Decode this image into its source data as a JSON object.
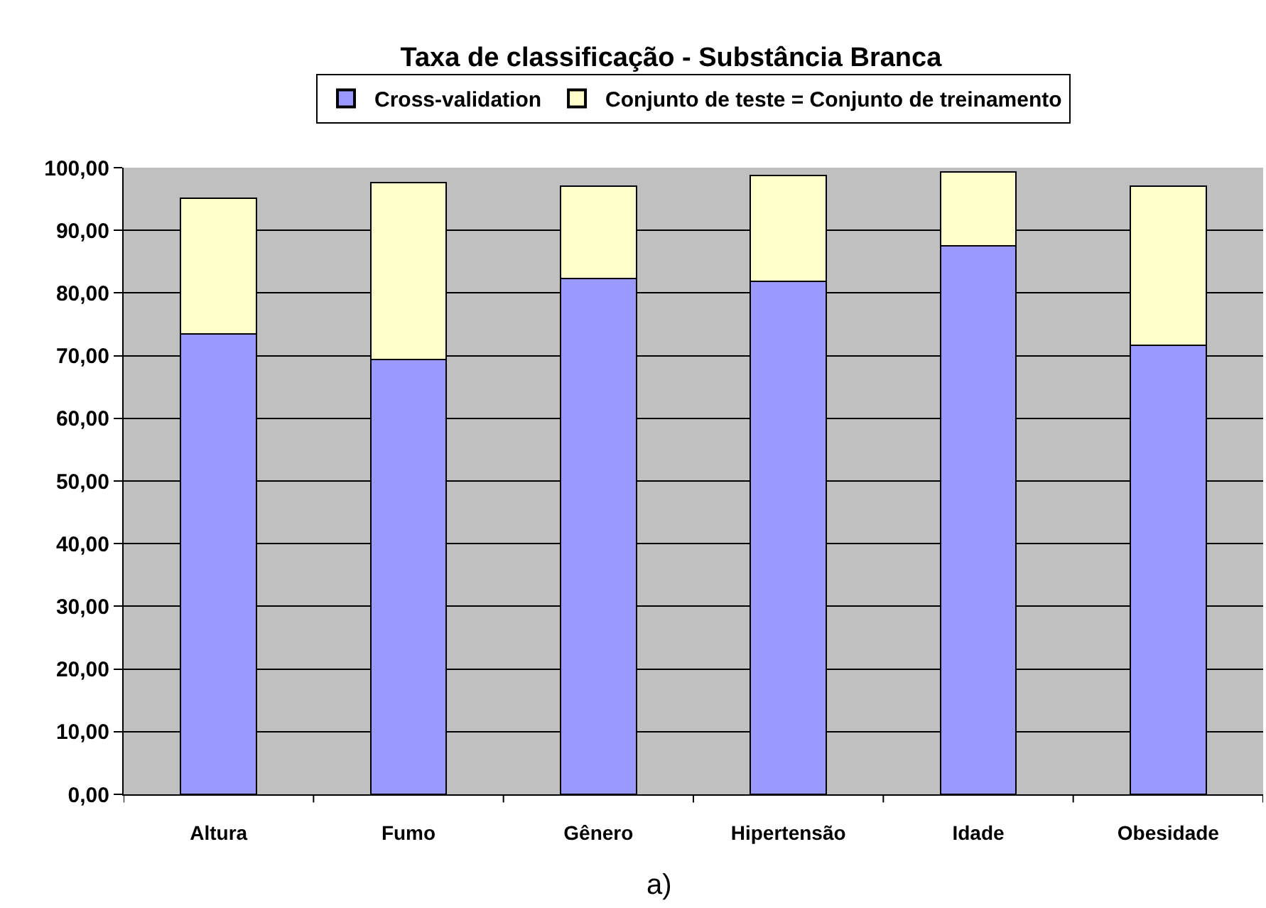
{
  "chart_data": {
    "type": "bar",
    "title": "Taxa de classificação - Substância Branca",
    "categories": [
      "Altura",
      "Fumo",
      "Gênero",
      "Hipertensão",
      "Idade",
      "Obesidade"
    ],
    "stacked": true,
    "series": [
      {
        "name": "Cross-validation",
        "color": "#9999ff",
        "values": [
          73.5,
          69.4,
          82.3,
          81.9,
          87.5,
          71.7
        ]
      },
      {
        "name": "Conjunto de teste = Conjunto de treinamento",
        "color": "#ffffcc",
        "values": [
          21.6,
          28.2,
          14.7,
          16.8,
          11.8,
          25.3
        ]
      }
    ],
    "ylim": [
      0,
      100
    ],
    "yticks": [
      {
        "value": 0,
        "label": "0,00"
      },
      {
        "value": 10,
        "label": "10,00"
      },
      {
        "value": 20,
        "label": "20,00"
      },
      {
        "value": 30,
        "label": "30,00"
      },
      {
        "value": 40,
        "label": "40,00"
      },
      {
        "value": 50,
        "label": "50,00"
      },
      {
        "value": 60,
        "label": "60,00"
      },
      {
        "value": 70,
        "label": "70,00"
      },
      {
        "value": 80,
        "label": "80,00"
      },
      {
        "value": 90,
        "label": "90,00"
      },
      {
        "value": 100,
        "label": "100,00"
      }
    ],
    "grid": "y",
    "legend": "top",
    "annotations": [
      "a)"
    ]
  }
}
